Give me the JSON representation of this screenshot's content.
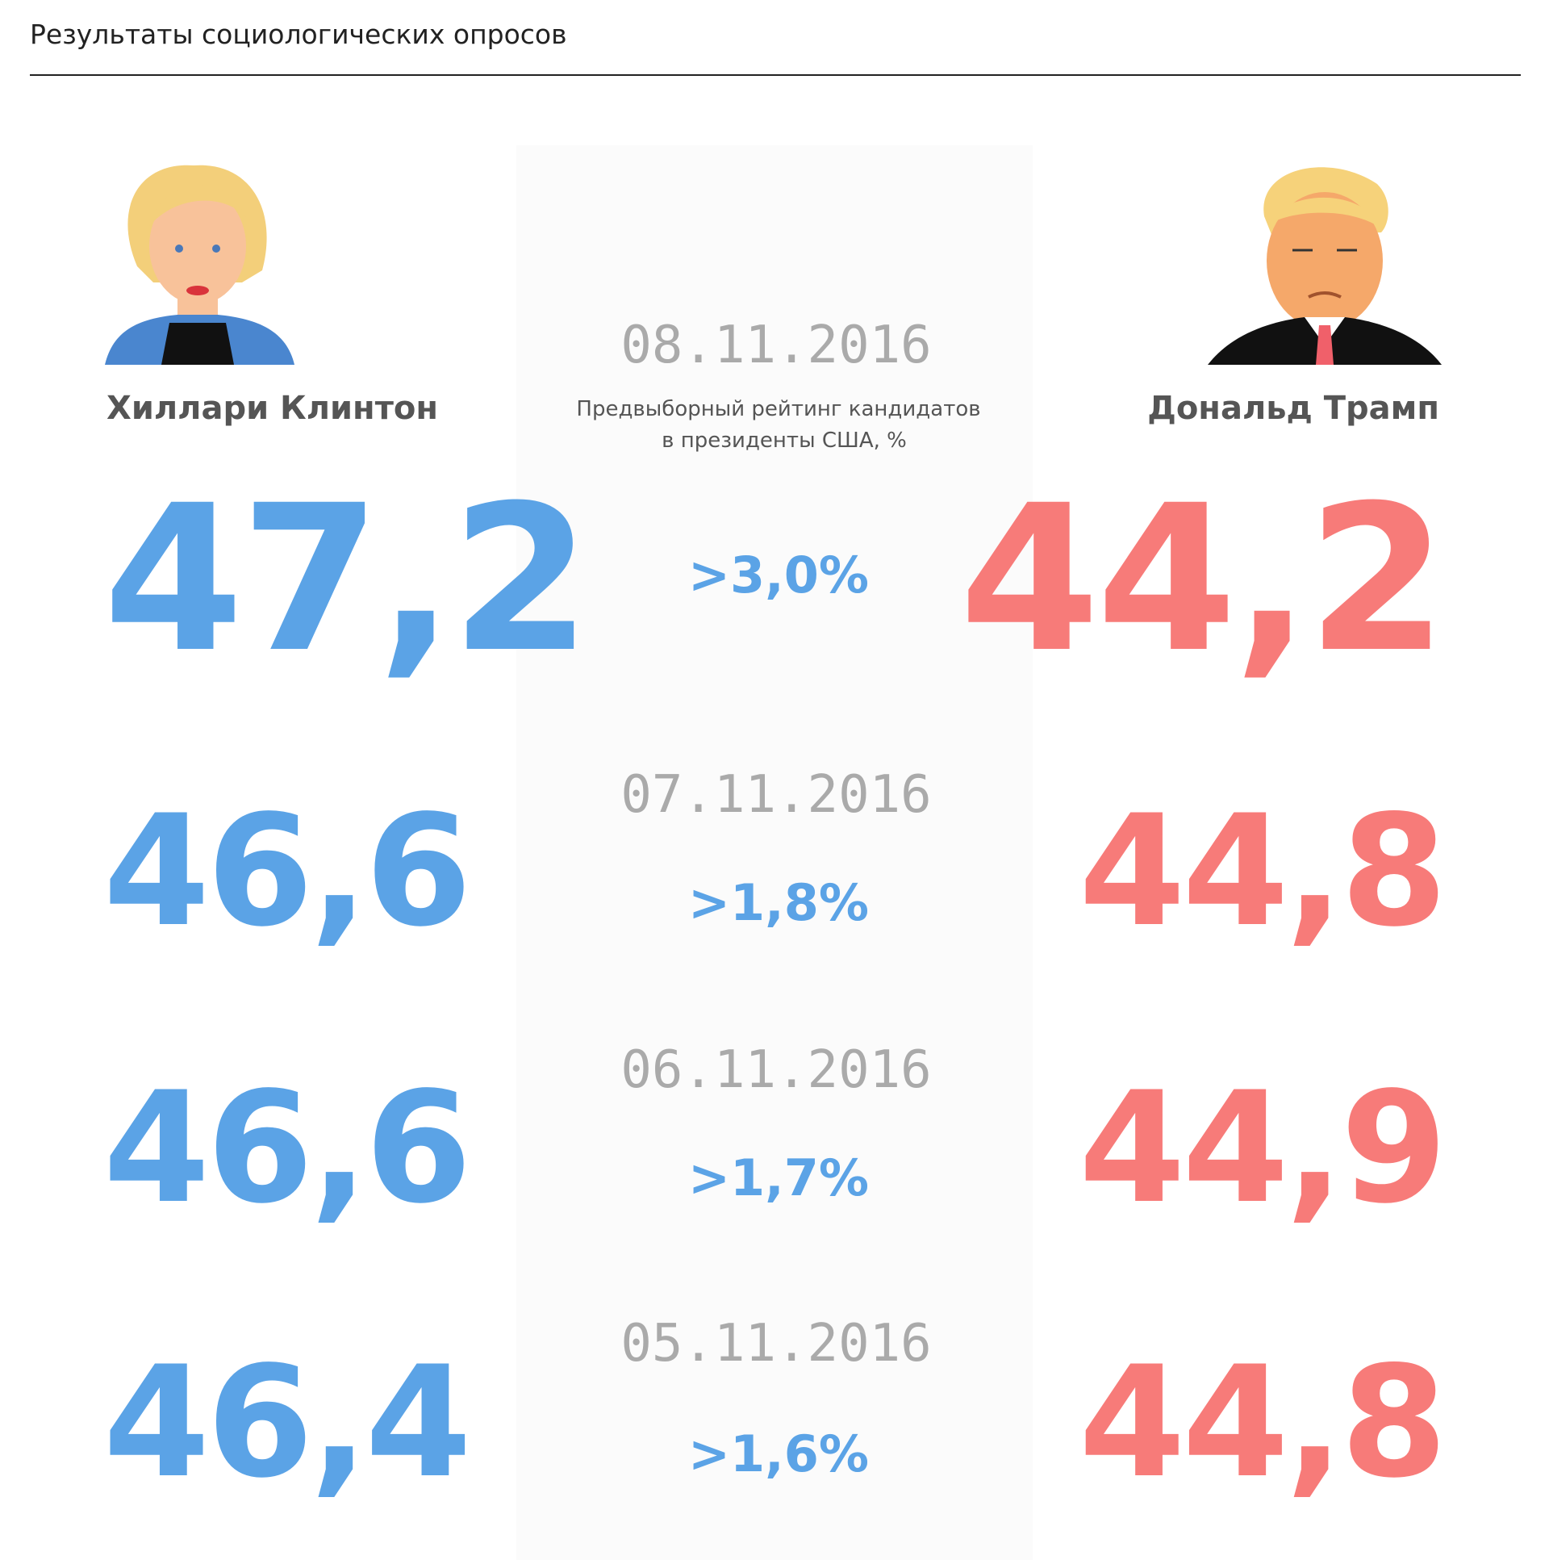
{
  "header": {
    "subtitle": "Результаты социологических опросов"
  },
  "candidates": [
    {
      "name": "Хиллари Клинтон"
    },
    {
      "name": "Дональд Трамп"
    }
  ],
  "description": [
    "Предвыборный рейтинг кандидатов",
    "в президенты США, %"
  ],
  "polls": [
    {
      "date": "08.11.2016",
      "clinton": "47,2",
      "trump": "44,2",
      "lead": ">3,0%"
    },
    {
      "date": "07.11.2016",
      "clinton": "46,6",
      "trump": "44,8",
      "lead": ">1,8%"
    },
    {
      "date": "06.11.2016",
      "clinton": "46,6",
      "trump": "44,9",
      "lead": ">1,7%"
    },
    {
      "date": "05.11.2016",
      "clinton": "46,4",
      "trump": "44,8",
      "lead": ">1,6%"
    }
  ]
}
